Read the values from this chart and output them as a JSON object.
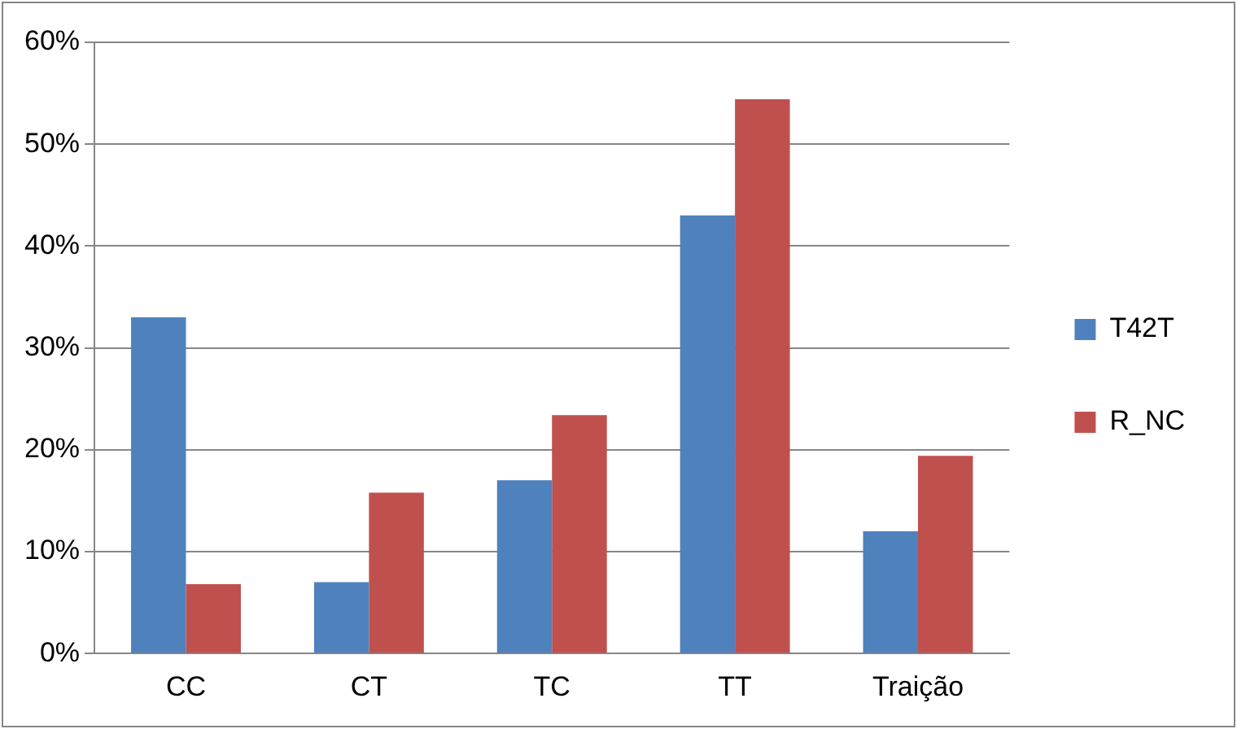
{
  "chart_data": {
    "type": "bar",
    "categories": [
      "CC",
      "CT",
      "TC",
      "TT",
      "Traição"
    ],
    "series": [
      {
        "name": "T42T",
        "color": "#4f81bd",
        "values": [
          33,
          7,
          17,
          43,
          12
        ]
      },
      {
        "name": "R_NC",
        "color": "#c0504d",
        "values": [
          6.8,
          15.8,
          23.4,
          54.4,
          19.4
        ]
      }
    ],
    "ylim": [
      0,
      60
    ],
    "yticks": [
      {
        "value": 0,
        "label": "0%"
      },
      {
        "value": 10,
        "label": "10%"
      },
      {
        "value": 20,
        "label": "20%"
      },
      {
        "value": 30,
        "label": "30%"
      },
      {
        "value": 40,
        "label": "40%"
      },
      {
        "value": 50,
        "label": "50%"
      },
      {
        "value": 60,
        "label": "60%"
      }
    ],
    "grid": "y",
    "legend": "right"
  }
}
